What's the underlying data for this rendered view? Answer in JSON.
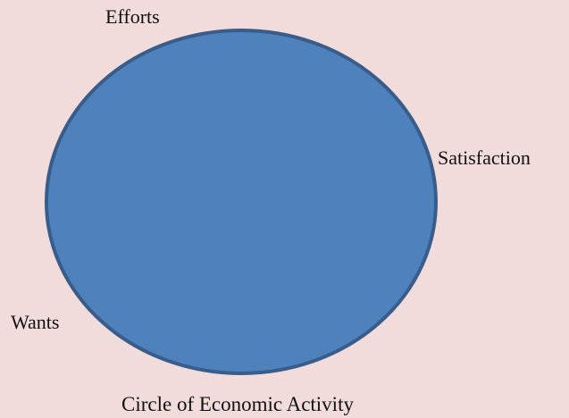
{
  "colors": {
    "background": "#F1DCDB",
    "circle_fill": "#4F81BD",
    "circle_stroke": "#385D8A",
    "text": "#111111"
  },
  "diagram": {
    "shape": "circle",
    "labels": {
      "efforts": "Efforts",
      "satisfaction": "Satisfaction",
      "wants": "Wants"
    }
  },
  "caption": "Circle of Economic Activity"
}
